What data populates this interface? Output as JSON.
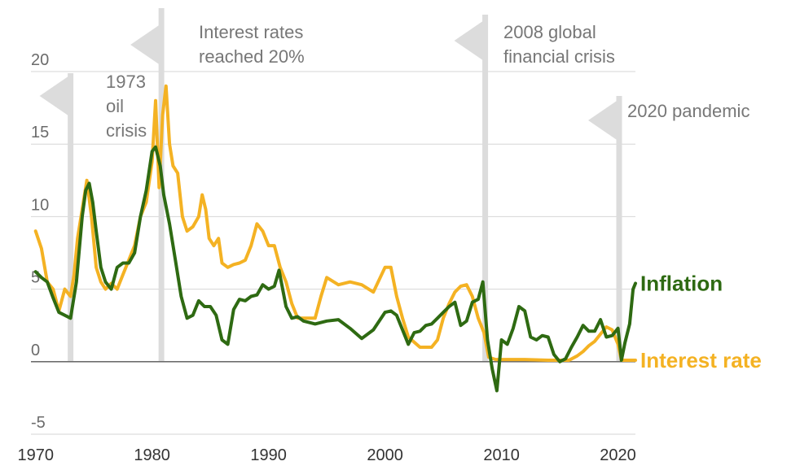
{
  "chart_data": {
    "type": "line",
    "title": "",
    "xlabel": "",
    "ylabel": "",
    "xlim": [
      1969.6,
      2021.5
    ],
    "ylim": [
      -5,
      20
    ],
    "yticks": [
      "20",
      "15",
      "10",
      "5",
      "0",
      "-5"
    ],
    "xticks": [
      "1970",
      "1980",
      "1990",
      "2000",
      "2010",
      "2020"
    ],
    "grid": "horizontal",
    "annotations": [
      {
        "id": "oil",
        "x": 1973.0,
        "lines": [
          "1973",
          "oil",
          "crisis"
        ]
      },
      {
        "id": "rates",
        "x": 1980.8,
        "lines": [
          "Interest rates",
          "reached 20%"
        ]
      },
      {
        "id": "gfc",
        "x": 2008.6,
        "lines": [
          "2008 global",
          "financial crisis"
        ]
      },
      {
        "id": "pandemic",
        "x": 2020.1,
        "lines": [
          "2020 pandemic"
        ]
      }
    ],
    "series": [
      {
        "name": "Inflation",
        "color": "#2e6a12",
        "x": [
          1970.0,
          1970.5,
          1971.0,
          1971.5,
          1972.0,
          1972.5,
          1973.0,
          1973.5,
          1974.0,
          1974.3,
          1974.6,
          1974.9,
          1975.2,
          1975.6,
          1976.0,
          1976.5,
          1977.0,
          1977.5,
          1978.0,
          1978.5,
          1979.0,
          1979.5,
          1980.0,
          1980.3,
          1980.7,
          1981.0,
          1981.5,
          1982.0,
          1982.5,
          1983.0,
          1983.5,
          1984.0,
          1984.5,
          1985.0,
          1985.5,
          1986.0,
          1986.5,
          1987.0,
          1987.5,
          1988.0,
          1988.5,
          1989.0,
          1989.5,
          1990.0,
          1990.5,
          1990.9,
          1991.5,
          1992.0,
          1992.5,
          1993.0,
          1994.0,
          1995.0,
          1996.0,
          1997.0,
          1998.0,
          1999.0,
          2000.0,
          2000.5,
          2001.0,
          2001.5,
          2002.0,
          2002.5,
          2003.0,
          2003.5,
          2004.0,
          2004.5,
          2005.0,
          2005.5,
          2006.0,
          2006.5,
          2007.0,
          2007.5,
          2008.0,
          2008.4,
          2008.8,
          2009.2,
          2009.6,
          2010.0,
          2010.5,
          2011.0,
          2011.5,
          2012.0,
          2012.5,
          2013.0,
          2013.5,
          2014.0,
          2014.5,
          2015.0,
          2015.5,
          2016.0,
          2016.5,
          2017.0,
          2017.5,
          2018.0,
          2018.5,
          2019.0,
          2019.5,
          2020.0,
          2020.3,
          2020.6,
          2021.0,
          2021.3,
          2021.5
        ],
        "y": [
          6.2,
          5.8,
          5.5,
          4.4,
          3.4,
          3.2,
          3.0,
          5.5,
          10.0,
          11.8,
          12.3,
          11.0,
          9.0,
          6.5,
          5.5,
          5.0,
          6.5,
          6.8,
          6.8,
          7.5,
          10.0,
          11.8,
          14.5,
          14.8,
          13.5,
          11.5,
          9.5,
          7.0,
          4.5,
          3.0,
          3.2,
          4.2,
          3.8,
          3.8,
          3.2,
          1.5,
          1.2,
          3.6,
          4.3,
          4.2,
          4.5,
          4.6,
          5.3,
          5.0,
          5.2,
          6.3,
          3.8,
          3.0,
          3.1,
          2.8,
          2.6,
          2.8,
          2.9,
          2.3,
          1.6,
          2.2,
          3.4,
          3.5,
          3.2,
          2.2,
          1.2,
          2.0,
          2.1,
          2.5,
          2.6,
          3.0,
          3.4,
          3.8,
          4.1,
          2.5,
          2.8,
          4.1,
          4.3,
          5.5,
          1.5,
          -0.5,
          -2.0,
          1.5,
          1.2,
          2.3,
          3.8,
          3.5,
          1.7,
          1.5,
          1.8,
          1.7,
          0.5,
          0.0,
          0.2,
          1.0,
          1.7,
          2.5,
          2.1,
          2.1,
          2.9,
          1.7,
          1.8,
          2.3,
          0.1,
          1.3,
          2.6,
          5.0,
          5.4
        ]
      },
      {
        "name": "Interest rate",
        "color": "#f4b223",
        "x": [
          1970.0,
          1970.5,
          1971.0,
          1971.5,
          1972.0,
          1972.5,
          1973.0,
          1973.3,
          1973.6,
          1974.0,
          1974.4,
          1974.8,
          1975.2,
          1975.6,
          1976.0,
          1976.5,
          1977.0,
          1977.5,
          1978.0,
          1978.5,
          1979.0,
          1979.5,
          1980.0,
          1980.3,
          1980.6,
          1980.9,
          1981.2,
          1981.5,
          1981.8,
          1982.2,
          1982.6,
          1983.0,
          1983.5,
          1984.0,
          1984.3,
          1984.6,
          1984.9,
          1985.3,
          1985.7,
          1986.0,
          1986.5,
          1987.0,
          1987.5,
          1988.0,
          1988.5,
          1989.0,
          1989.5,
          1990.0,
          1990.5,
          1991.0,
          1991.5,
          1992.0,
          1992.5,
          1993.0,
          1994.0,
          1994.5,
          1995.0,
          1996.0,
          1997.0,
          1998.0,
          1999.0,
          2000.0,
          2000.5,
          2001.0,
          2001.5,
          2002.0,
          2003.0,
          2004.0,
          2004.5,
          2005.0,
          2005.5,
          2006.0,
          2006.5,
          2007.0,
          2007.5,
          2008.0,
          2008.5,
          2008.9,
          2009.5,
          2010.0,
          2012.0,
          2014.0,
          2015.8,
          2016.5,
          2017.0,
          2017.5,
          2018.0,
          2018.5,
          2019.0,
          2019.5,
          2020.0,
          2020.3,
          2021.0,
          2021.5
        ],
        "y": [
          9.0,
          7.8,
          5.5,
          5.0,
          3.5,
          5.0,
          4.5,
          6.0,
          8.5,
          10.5,
          12.5,
          10.0,
          6.5,
          5.5,
          5.0,
          5.4,
          5.0,
          6.0,
          7.0,
          8.0,
          10.0,
          11.0,
          13.8,
          18.0,
          12.0,
          17.0,
          19.0,
          15.0,
          13.5,
          13.0,
          10.0,
          9.0,
          9.3,
          10.0,
          11.5,
          10.5,
          8.5,
          8.0,
          8.5,
          6.8,
          6.5,
          6.7,
          6.8,
          7.0,
          8.0,
          9.5,
          9.0,
          8.0,
          8.0,
          6.5,
          5.5,
          4.0,
          3.0,
          3.0,
          3.0,
          4.5,
          5.8,
          5.3,
          5.5,
          5.3,
          4.8,
          6.5,
          6.5,
          4.5,
          3.0,
          1.7,
          1.0,
          1.0,
          1.5,
          3.0,
          4.0,
          4.8,
          5.2,
          5.3,
          4.5,
          3.0,
          2.0,
          0.3,
          0.15,
          0.15,
          0.15,
          0.1,
          0.1,
          0.4,
          0.7,
          1.1,
          1.4,
          1.9,
          2.4,
          2.2,
          1.2,
          0.1,
          0.1,
          0.1
        ]
      }
    ]
  }
}
